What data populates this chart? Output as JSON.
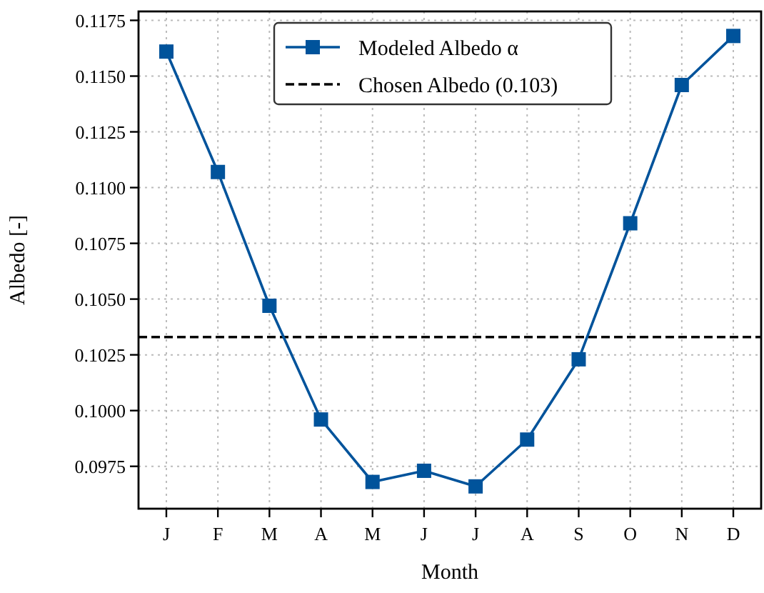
{
  "chart_data": {
    "type": "line",
    "xlabel": "Month",
    "ylabel": "Albedo [-]",
    "categories": [
      "J",
      "F",
      "M",
      "A",
      "M",
      "J",
      "J",
      "A",
      "S",
      "O",
      "N",
      "D"
    ],
    "series": [
      {
        "name": "Modeled Albedo α",
        "color": "#00539b",
        "values": [
          0.1161,
          0.1107,
          0.1047,
          0.0996,
          0.0968,
          0.0973,
          0.0966,
          0.0987,
          0.1023,
          0.1084,
          0.1146,
          0.1168
        ]
      }
    ],
    "ylim": [
      0.0956,
      0.1179
    ],
    "yticks": [
      {
        "value": 0.0975,
        "label": "0.0975"
      },
      {
        "value": 0.1,
        "label": "0.1000"
      },
      {
        "value": 0.1025,
        "label": "0.1025"
      },
      {
        "value": 0.105,
        "label": "0.1050"
      },
      {
        "value": 0.1075,
        "label": "0.1075"
      },
      {
        "value": 0.11,
        "label": "0.1100"
      },
      {
        "value": 0.1125,
        "label": "0.1125"
      },
      {
        "value": 0.115,
        "label": "0.1150"
      },
      {
        "value": 0.1175,
        "label": "0.1175"
      }
    ],
    "ref_lines": [
      {
        "axis": "y",
        "value": 0.1033,
        "label": "Chosen Albedo (0.103)",
        "color": "#000000",
        "line_style": "dashed"
      }
    ],
    "grid": true,
    "legend": "top",
    "marker": "square",
    "line_style": "solid"
  }
}
